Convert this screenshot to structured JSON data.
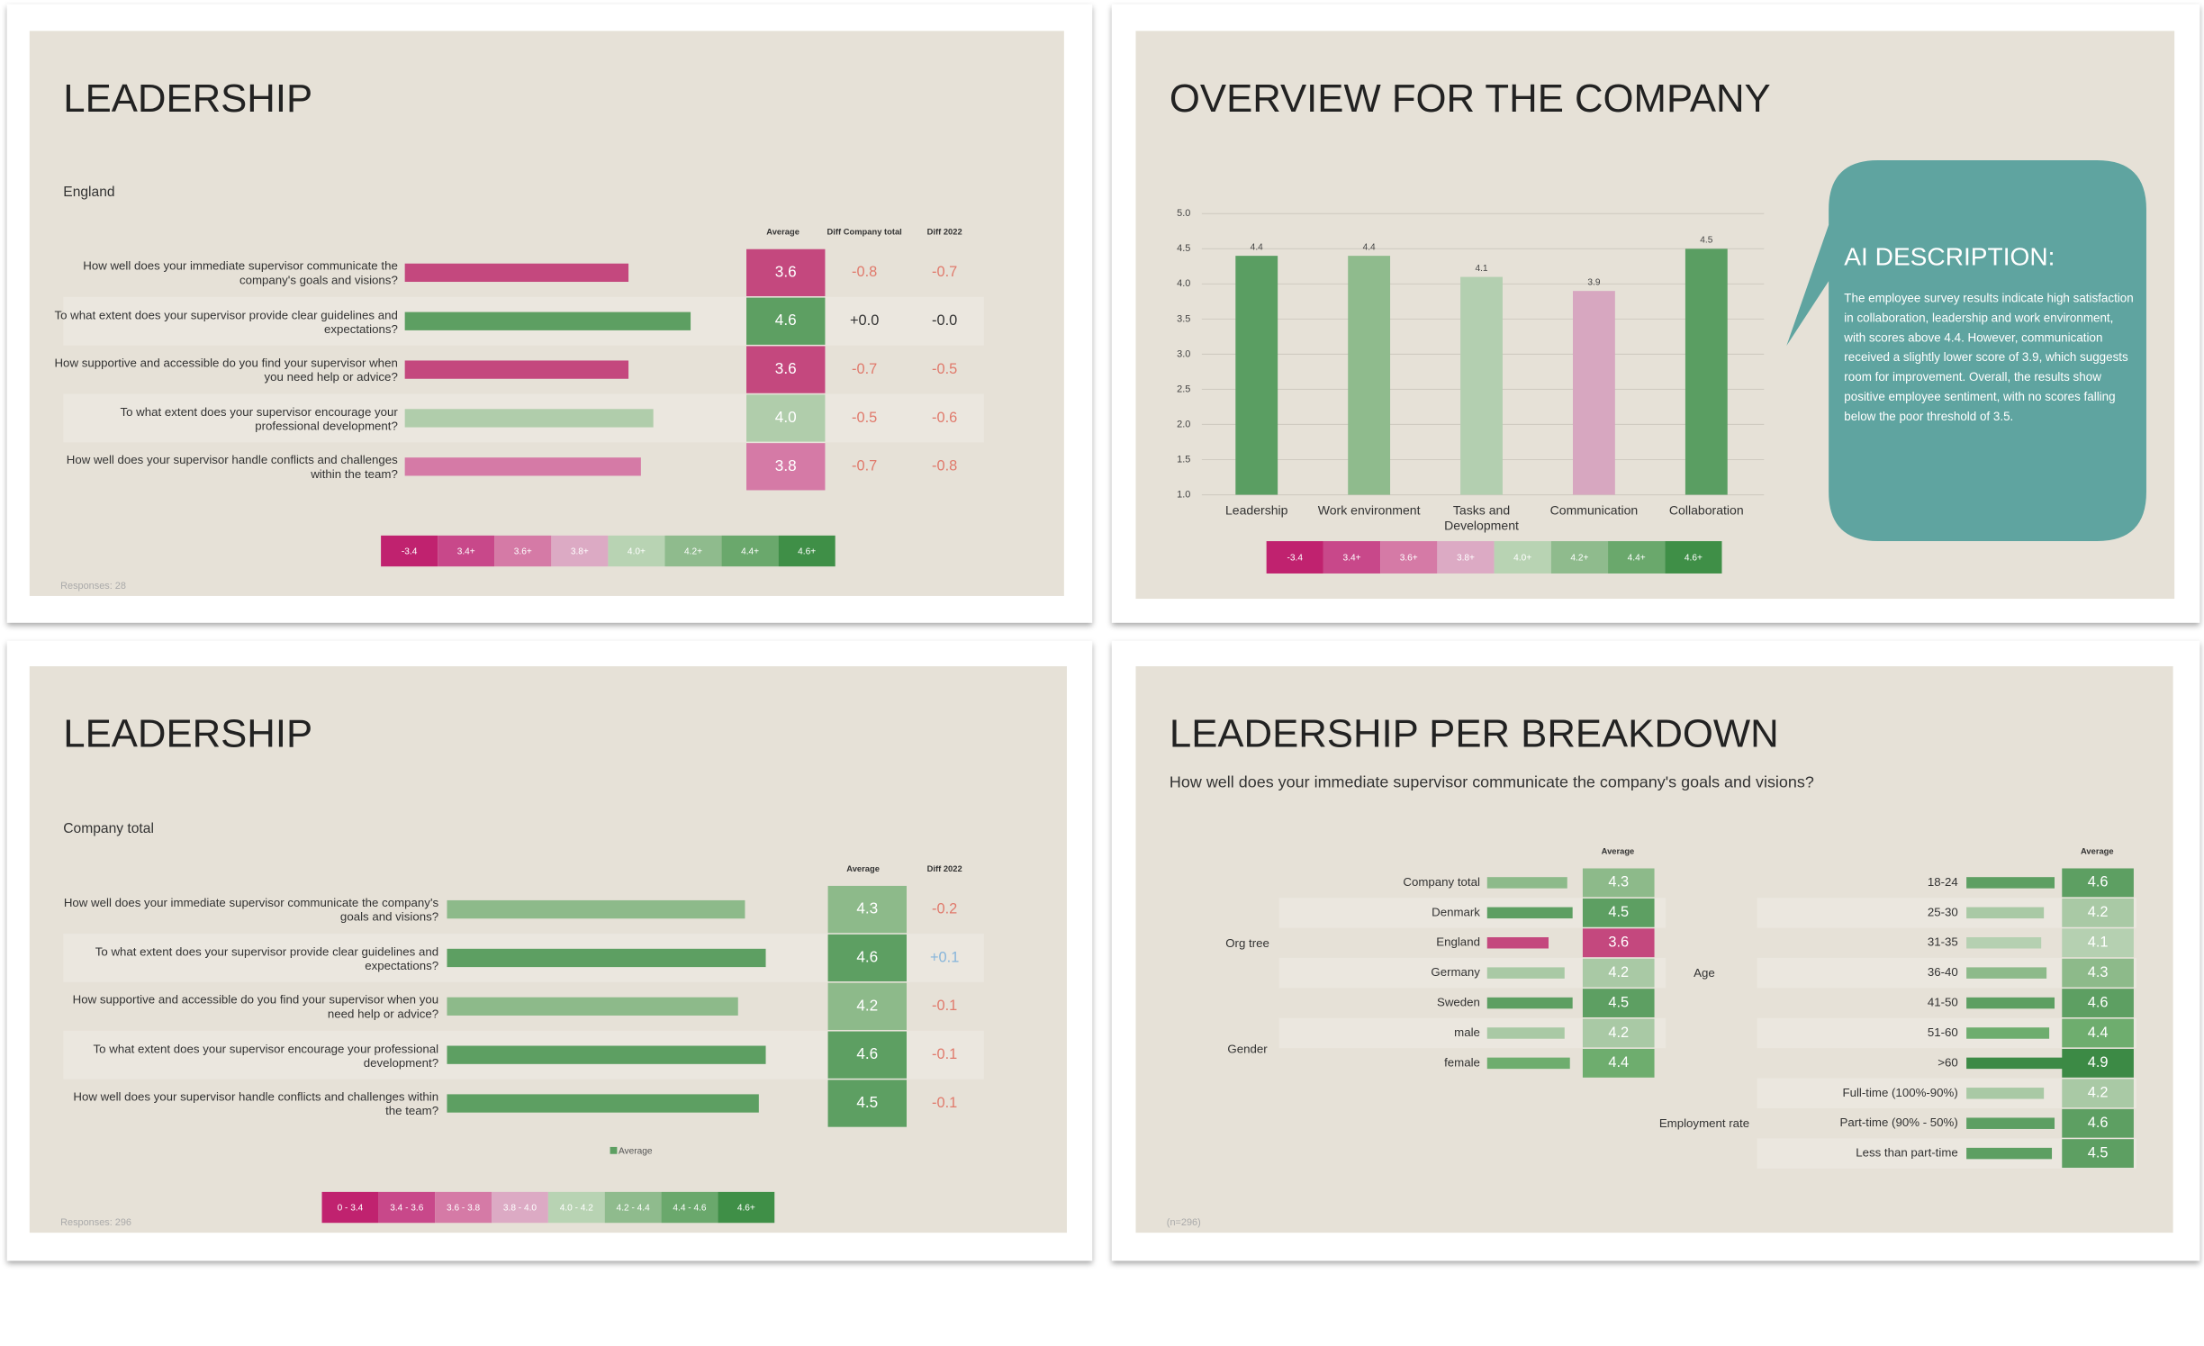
{
  "slides": [
    {
      "title": "LEADERSHIP",
      "subtitle": "England",
      "headers": [
        "Average",
        "Diff Company total",
        "Diff 2022"
      ],
      "rows": [
        {
          "question": "How well does your immediate supervisor communicate the company's goals and visions?",
          "value": 3.6,
          "color": "#c4487e",
          "diffs": [
            {
              "text": "-0.8",
              "color": "#e07a6c"
            },
            {
              "text": "-0.7",
              "color": "#e07a6c"
            }
          ]
        },
        {
          "question": "To what extent does your supervisor provide clear guidelines and expectations?",
          "value": 4.6,
          "color": "#5d9f62",
          "diffs": [
            {
              "text": "+0.0",
              "color": "#333333"
            },
            {
              "text": "-0.0",
              "color": "#333333"
            }
          ]
        },
        {
          "question": "How supportive and accessible do you find your supervisor when you need help or advice?",
          "value": 3.6,
          "color": "#c4487e",
          "diffs": [
            {
              "text": "-0.7",
              "color": "#e07a6c"
            },
            {
              "text": "-0.5",
              "color": "#e07a6c"
            }
          ]
        },
        {
          "question": "To what extent does your supervisor encourage your professional development?",
          "value": 4.0,
          "value_label": "4.0",
          "color": "#b0cdab",
          "diffs": [
            {
              "text": "-0.5",
              "color": "#e07a6c"
            },
            {
              "text": "-0.6",
              "color": "#e07a6c"
            }
          ]
        },
        {
          "question": "How well does your supervisor handle conflicts and challenges within the team?",
          "value": 3.8,
          "color": "#d57aa6",
          "diffs": [
            {
              "text": "-0.7",
              "color": "#e07a6c"
            },
            {
              "text": "-0.8",
              "color": "#e07a6c"
            }
          ]
        }
      ],
      "legend": [
        {
          "label": "-3.4",
          "color": "#c0226f"
        },
        {
          "label": "3.4+",
          "color": "#c8488a"
        },
        {
          "label": "3.6+",
          "color": "#d57aa6"
        },
        {
          "label": "3.8+",
          "color": "#dcaac4"
        },
        {
          "label": "4.0+",
          "color": "#b8d3b3"
        },
        {
          "label": "4.2+",
          "color": "#8fbb8d"
        },
        {
          "label": "4.4+",
          "color": "#6aa86c"
        },
        {
          "label": "4.6+",
          "color": "#3f8f47"
        }
      ],
      "footer": "Responses: 28"
    },
    {
      "title": "OVERVIEW FOR THE COMPANY",
      "chart": {
        "type": "bar",
        "categories": [
          "Leadership",
          "Work environment",
          "Tasks and Development",
          "Communication",
          "Collaboration"
        ],
        "values": [
          4.4,
          4.4,
          4.1,
          3.9,
          4.5
        ],
        "colors": [
          "#5a9e62",
          "#8fbb8d",
          "#b3cfb0",
          "#d7a7c0",
          "#5a9e62"
        ],
        "ylim": [
          1,
          5
        ],
        "grid": true,
        "yticks": [
          {
            "value": 1,
            "label": "1.0"
          },
          1.5,
          {
            "value": 2,
            "label": "2.0"
          },
          2.5,
          {
            "value": 3,
            "label": "3.0"
          },
          3.5,
          {
            "value": 4,
            "label": "4.0"
          },
          4.5,
          {
            "value": 5,
            "label": "5.0"
          }
        ]
      },
      "ai_title": "AI DESCRIPTION:",
      "ai_text": "The employee survey results indicate high satisfaction in collaboration, leadership and work environment, with scores above 4.4. However, communication received a slightly lower score of 3.9, which suggests room for improvement. Overall, the results show positive employee sentiment, with no scores falling below the poor threshold of 3.5.",
      "legend": [
        {
          "label": "-3.4",
          "color": "#c0226f"
        },
        {
          "label": "3.4+",
          "color": "#c8488a"
        },
        {
          "label": "3.6+",
          "color": "#d57aa6"
        },
        {
          "label": "3.8+",
          "color": "#dcaac4"
        },
        {
          "label": "4.0+",
          "color": "#b8d3b3"
        },
        {
          "label": "4.2+",
          "color": "#8fbb8d"
        },
        {
          "label": "4.4+",
          "color": "#6aa86c"
        },
        {
          "label": "4.6+",
          "color": "#3f8f47"
        }
      ]
    },
    {
      "title": "LEADERSHIP",
      "subtitle": "Company total",
      "headers": [
        "Average",
        "Diff 2022"
      ],
      "rows": [
        {
          "question": "How well does your immediate supervisor communicate the company's goals and visions?",
          "value": 4.3,
          "color": "#8dba8a",
          "diffs": [
            {
              "text": "-0.2",
              "color": "#e07a6c"
            }
          ]
        },
        {
          "question": "To what extent does your supervisor provide clear guidelines and expectations?",
          "value": 4.6,
          "color": "#5d9f62",
          "diffs": [
            {
              "text": "+0.1",
              "color": "#86b5db"
            }
          ]
        },
        {
          "question": "How supportive and accessible do you find your supervisor when you need help or advice?",
          "value": 4.2,
          "color": "#8dba8a",
          "diffs": [
            {
              "text": "-0.1",
              "color": "#e07a6c"
            }
          ]
        },
        {
          "question": "To what extent does your supervisor encourage your professional development?",
          "value": 4.6,
          "color": "#5d9f62",
          "diffs": [
            {
              "text": "-0.1",
              "color": "#e07a6c"
            }
          ]
        },
        {
          "question": "How well does your supervisor handle conflicts and challenges within the team?",
          "value": 4.5,
          "color": "#5d9f62",
          "diffs": [
            {
              "text": "-0.1",
              "color": "#e07a6c"
            }
          ]
        }
      ],
      "series_label": "Average",
      "legend": [
        {
          "label": "0 - 3.4",
          "color": "#c0226f"
        },
        {
          "label": "3.4 - 3.6",
          "color": "#c8488a"
        },
        {
          "label": "3.6 - 3.8",
          "color": "#d57aa6"
        },
        {
          "label": "3.8 - 4.0",
          "color": "#dcaac4"
        },
        {
          "label": "4.0 - 4.2",
          "color": "#b8d3b3"
        },
        {
          "label": "4.2 - 4.4",
          "color": "#8fbb8d"
        },
        {
          "label": "4.4 - 4.6",
          "color": "#6aa86c"
        },
        {
          "label": "4.6+",
          "color": "#3f8f47"
        }
      ],
      "footer": "Responses: 296"
    },
    {
      "title": "LEADERSHIP PER BREAKDOWN",
      "subtitle": "How well does your immediate supervisor communicate the company's goals and visions?",
      "header": "Average",
      "footer": "(n=296)",
      "columns": [
        {
          "groups": [
            {
              "name": "Org tree",
              "items": [
                {
                  "label": "Company total",
                  "value": 4.3,
                  "color": "#8dba8a"
                },
                {
                  "label": "Denmark",
                  "value": 4.5,
                  "color": "#5d9f62"
                },
                {
                  "label": "England",
                  "value": 3.6,
                  "color": "#c4487e"
                },
                {
                  "label": "Germany",
                  "value": 4.2,
                  "color": "#a9c9a5"
                },
                {
                  "label": "Sweden",
                  "value": 4.5,
                  "color": "#5d9f62"
                }
              ]
            },
            {
              "name": "Gender",
              "items": [
                {
                  "label": "male",
                  "value": 4.2,
                  "color": "#a9c9a5"
                },
                {
                  "label": "female",
                  "value": 4.4,
                  "color": "#6ead6e"
                }
              ]
            }
          ]
        },
        {
          "groups": [
            {
              "name": "Age",
              "items": [
                {
                  "label": "18-24",
                  "value": 4.6,
                  "color": "#5d9f62"
                },
                {
                  "label": "25-30",
                  "value": 4.2,
                  "color": "#a9c9a5"
                },
                {
                  "label": "31-35",
                  "value": 4.1,
                  "color": "#b5d0b1"
                },
                {
                  "label": "36-40",
                  "value": 4.3,
                  "color": "#8dba8a"
                },
                {
                  "label": "41-50",
                  "value": 4.6,
                  "color": "#5d9f62"
                },
                {
                  "label": "51-60",
                  "value": 4.4,
                  "color": "#6ead6e"
                },
                {
                  "label": ">60",
                  "value": 4.9,
                  "color": "#3c8a45"
                }
              ]
            },
            {
              "name": "Employment rate",
              "items": [
                {
                  "label": "Full-time (100%-90%)",
                  "value": 4.2,
                  "color": "#a9c9a5"
                },
                {
                  "label": "Part-time (90% - 50%)",
                  "value": 4.6,
                  "color": "#5d9f62"
                },
                {
                  "label": "Less than part-time",
                  "value": 4.5,
                  "color": "#5d9f62"
                }
              ]
            }
          ]
        }
      ]
    }
  ]
}
